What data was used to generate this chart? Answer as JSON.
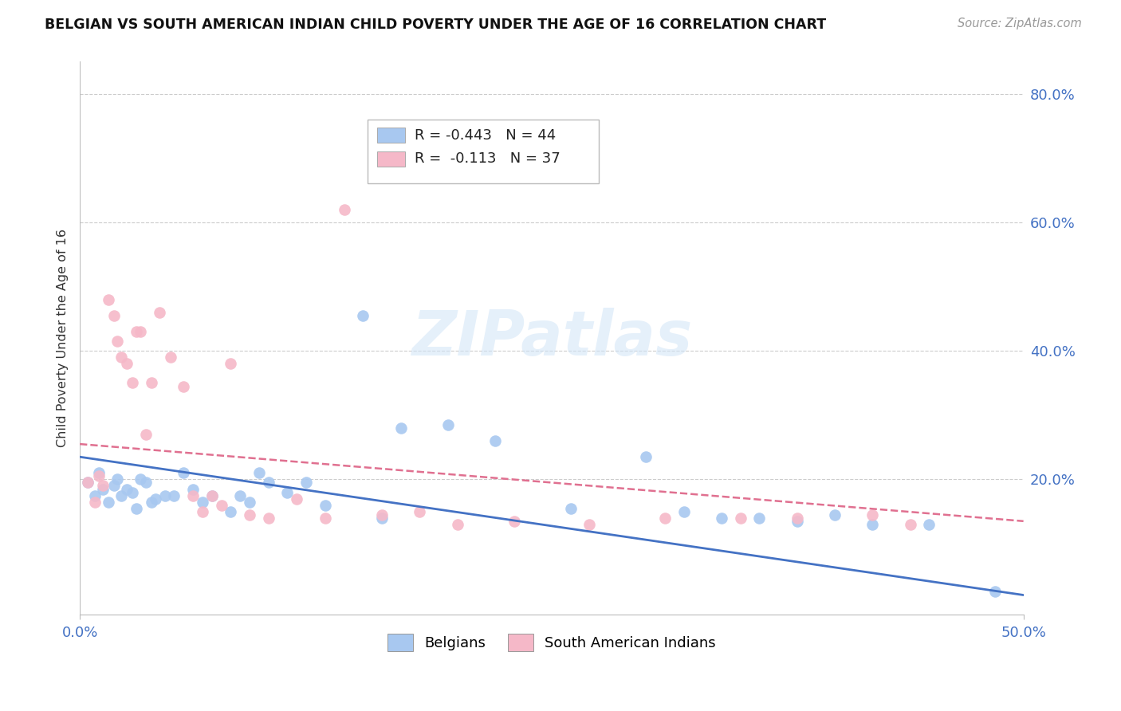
{
  "title": "BELGIAN VS SOUTH AMERICAN INDIAN CHILD POVERTY UNDER THE AGE OF 16 CORRELATION CHART",
  "source": "Source: ZipAtlas.com",
  "ylabel": "Child Poverty Under the Age of 16",
  "xlim": [
    0.0,
    0.5
  ],
  "ylim": [
    -0.01,
    0.85
  ],
  "ytick_vals": [
    0.0,
    0.2,
    0.4,
    0.6,
    0.8
  ],
  "ytick_labels": [
    "",
    "20.0%",
    "40.0%",
    "60.0%",
    "80.0%"
  ],
  "belgian_R": -0.443,
  "belgian_N": 44,
  "sa_indian_R": -0.113,
  "sa_indian_N": 37,
  "belgian_color": "#a8c8f0",
  "sa_indian_color": "#f5b8c8",
  "trend_belgian_color": "#4472c4",
  "trend_sa_color": "#e07090",
  "watermark": "ZIPatlas",
  "trend_bel_x0": 0.0,
  "trend_bel_y0": 0.235,
  "trend_bel_x1": 0.5,
  "trend_bel_y1": 0.02,
  "trend_sa_x0": 0.0,
  "trend_sa_y0": 0.255,
  "trend_sa_x1": 0.5,
  "trend_sa_y1": 0.135,
  "belgians_x": [
    0.004,
    0.008,
    0.01,
    0.012,
    0.015,
    0.018,
    0.02,
    0.022,
    0.025,
    0.028,
    0.03,
    0.032,
    0.035,
    0.038,
    0.04,
    0.045,
    0.05,
    0.055,
    0.06,
    0.065,
    0.07,
    0.08,
    0.085,
    0.09,
    0.095,
    0.1,
    0.11,
    0.12,
    0.13,
    0.15,
    0.16,
    0.17,
    0.195,
    0.22,
    0.26,
    0.3,
    0.32,
    0.34,
    0.36,
    0.38,
    0.4,
    0.42,
    0.45,
    0.485
  ],
  "belgians_y": [
    0.195,
    0.175,
    0.21,
    0.185,
    0.165,
    0.19,
    0.2,
    0.175,
    0.185,
    0.18,
    0.155,
    0.2,
    0.195,
    0.165,
    0.17,
    0.175,
    0.175,
    0.21,
    0.185,
    0.165,
    0.175,
    0.15,
    0.175,
    0.165,
    0.21,
    0.195,
    0.18,
    0.195,
    0.16,
    0.455,
    0.14,
    0.28,
    0.285,
    0.26,
    0.155,
    0.235,
    0.15,
    0.14,
    0.14,
    0.135,
    0.145,
    0.13,
    0.13,
    0.025
  ],
  "sa_indians_x": [
    0.004,
    0.008,
    0.01,
    0.012,
    0.015,
    0.018,
    0.02,
    0.022,
    0.025,
    0.028,
    0.03,
    0.032,
    0.035,
    0.038,
    0.042,
    0.048,
    0.055,
    0.06,
    0.065,
    0.07,
    0.075,
    0.08,
    0.09,
    0.1,
    0.115,
    0.13,
    0.14,
    0.16,
    0.18,
    0.2,
    0.23,
    0.27,
    0.31,
    0.35,
    0.38,
    0.42,
    0.44
  ],
  "sa_indians_y": [
    0.195,
    0.165,
    0.205,
    0.19,
    0.48,
    0.455,
    0.415,
    0.39,
    0.38,
    0.35,
    0.43,
    0.43,
    0.27,
    0.35,
    0.46,
    0.39,
    0.345,
    0.175,
    0.15,
    0.175,
    0.16,
    0.38,
    0.145,
    0.14,
    0.17,
    0.14,
    0.62,
    0.145,
    0.15,
    0.13,
    0.135,
    0.13,
    0.14,
    0.14,
    0.14,
    0.145,
    0.13
  ]
}
